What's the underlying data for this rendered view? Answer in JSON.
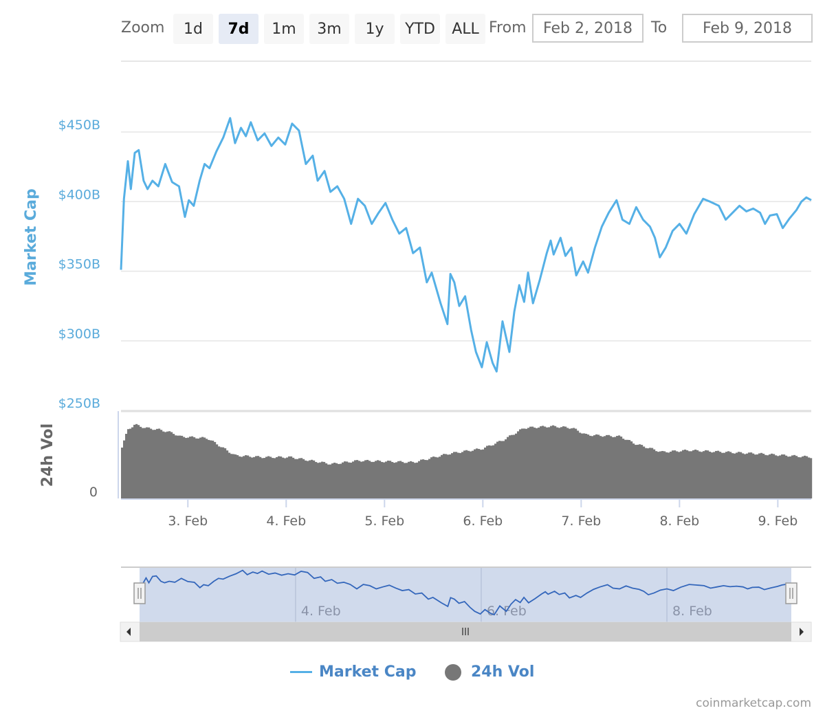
{
  "toolbar": {
    "zoom_label": "Zoom",
    "ranges": [
      "1d",
      "7d",
      "1m",
      "3m",
      "1y",
      "YTD",
      "ALL"
    ],
    "active_range": "7d",
    "from_label": "From",
    "from_value": "Feb 2, 2018",
    "to_label": "To",
    "to_value": "Feb 9, 2018"
  },
  "colors": {
    "market_cap": "#55b0e6",
    "volume": "#777777",
    "navigator_line": "#3366bb",
    "navigator_mask": "#cbd6ea",
    "axis_label": "#5aabdb"
  },
  "chart_data": {
    "type": "line",
    "title": "",
    "x_unit": "day of February 2018",
    "xlim": [
      2.32,
      9.34
    ],
    "x_ticks": [
      3,
      4,
      5,
      6,
      7,
      8,
      9
    ],
    "x_tick_labels": [
      "3. Feb",
      "4. Feb",
      "5. Feb",
      "6. Feb",
      "7. Feb",
      "8. Feb",
      "9. Feb"
    ],
    "market_cap": {
      "name": "Market Cap",
      "ylabel": "Market Cap",
      "ylim": [
        250,
        450
      ],
      "y_ticks": [
        250,
        300,
        350,
        400,
        450
      ],
      "y_tick_labels": [
        "$250B",
        "$300B",
        "$350B",
        "$400B",
        "$450B"
      ],
      "points": [
        [
          2.32,
          351
        ],
        [
          2.35,
          402
        ],
        [
          2.39,
          429
        ],
        [
          2.42,
          409
        ],
        [
          2.46,
          435
        ],
        [
          2.5,
          437
        ],
        [
          2.55,
          415
        ],
        [
          2.59,
          409
        ],
        [
          2.64,
          415
        ],
        [
          2.7,
          411
        ],
        [
          2.77,
          427
        ],
        [
          2.84,
          414
        ],
        [
          2.91,
          411
        ],
        [
          2.97,
          389
        ],
        [
          3.01,
          401
        ],
        [
          3.06,
          397
        ],
        [
          3.12,
          415
        ],
        [
          3.17,
          427
        ],
        [
          3.22,
          424
        ],
        [
          3.29,
          436
        ],
        [
          3.36,
          446
        ],
        [
          3.43,
          460
        ],
        [
          3.48,
          442
        ],
        [
          3.54,
          453
        ],
        [
          3.59,
          447
        ],
        [
          3.64,
          457
        ],
        [
          3.71,
          444
        ],
        [
          3.78,
          449
        ],
        [
          3.85,
          440
        ],
        [
          3.92,
          446
        ],
        [
          3.99,
          441
        ],
        [
          4.06,
          456
        ],
        [
          4.13,
          451
        ],
        [
          4.2,
          427
        ],
        [
          4.27,
          433
        ],
        [
          4.32,
          415
        ],
        [
          4.39,
          422
        ],
        [
          4.45,
          407
        ],
        [
          4.52,
          411
        ],
        [
          4.59,
          402
        ],
        [
          4.66,
          384
        ],
        [
          4.73,
          402
        ],
        [
          4.8,
          397
        ],
        [
          4.87,
          384
        ],
        [
          4.94,
          392
        ],
        [
          5.01,
          399
        ],
        [
          5.08,
          387
        ],
        [
          5.15,
          377
        ],
        [
          5.22,
          381
        ],
        [
          5.29,
          363
        ],
        [
          5.36,
          367
        ],
        [
          5.43,
          342
        ],
        [
          5.48,
          349
        ],
        [
          5.57,
          327
        ],
        [
          5.64,
          312
        ],
        [
          5.67,
          348
        ],
        [
          5.71,
          342
        ],
        [
          5.76,
          325
        ],
        [
          5.82,
          332
        ],
        [
          5.88,
          308
        ],
        [
          5.93,
          292
        ],
        [
          5.99,
          281
        ],
        [
          6.04,
          299
        ],
        [
          6.1,
          284
        ],
        [
          6.14,
          278
        ],
        [
          6.2,
          314
        ],
        [
          6.27,
          292
        ],
        [
          6.32,
          321
        ],
        [
          6.37,
          340
        ],
        [
          6.42,
          328
        ],
        [
          6.46,
          349
        ],
        [
          6.51,
          327
        ],
        [
          6.58,
          344
        ],
        [
          6.65,
          363
        ],
        [
          6.69,
          372
        ],
        [
          6.72,
          362
        ],
        [
          6.79,
          374
        ],
        [
          6.84,
          361
        ],
        [
          6.9,
          367
        ],
        [
          6.95,
          347
        ],
        [
          7.02,
          357
        ],
        [
          7.07,
          349
        ],
        [
          7.14,
          367
        ],
        [
          7.21,
          382
        ],
        [
          7.28,
          392
        ],
        [
          7.36,
          401
        ],
        [
          7.42,
          387
        ],
        [
          7.49,
          384
        ],
        [
          7.56,
          396
        ],
        [
          7.63,
          387
        ],
        [
          7.7,
          382
        ],
        [
          7.75,
          374
        ],
        [
          7.8,
          360
        ],
        [
          7.86,
          367
        ],
        [
          7.93,
          379
        ],
        [
          8.0,
          384
        ],
        [
          8.07,
          377
        ],
        [
          8.15,
          391
        ],
        [
          8.24,
          402
        ],
        [
          8.31,
          400
        ],
        [
          8.4,
          397
        ],
        [
          8.47,
          387
        ],
        [
          8.54,
          392
        ],
        [
          8.61,
          397
        ],
        [
          8.68,
          393
        ],
        [
          8.75,
          395
        ],
        [
          8.82,
          392
        ],
        [
          8.87,
          384
        ],
        [
          8.92,
          390
        ],
        [
          8.99,
          391
        ],
        [
          9.05,
          381
        ],
        [
          9.12,
          388
        ],
        [
          9.19,
          394
        ],
        [
          9.24,
          400
        ],
        [
          9.29,
          403
        ],
        [
          9.34,
          401
        ]
      ]
    },
    "volume": {
      "name": "24h Vol",
      "ylabel": "24h Vol",
      "y_tick_labels": [
        "0"
      ],
      "value_unit": "percent of volume axis",
      "points": [
        [
          2.32,
          60
        ],
        [
          2.38,
          80
        ],
        [
          2.45,
          86
        ],
        [
          2.56,
          82
        ],
        [
          2.7,
          80
        ],
        [
          2.84,
          76
        ],
        [
          2.91,
          72
        ],
        [
          3.19,
          70
        ],
        [
          3.33,
          60
        ],
        [
          3.47,
          50
        ],
        [
          3.75,
          48
        ],
        [
          4.03,
          48
        ],
        [
          4.45,
          40
        ],
        [
          4.73,
          44
        ],
        [
          5.29,
          42
        ],
        [
          5.64,
          52
        ],
        [
          5.99,
          58
        ],
        [
          6.2,
          68
        ],
        [
          6.41,
          82
        ],
        [
          6.69,
          84
        ],
        [
          6.9,
          82
        ],
        [
          7.04,
          74
        ],
        [
          7.39,
          72
        ],
        [
          7.53,
          64
        ],
        [
          7.81,
          54
        ],
        [
          8.09,
          56
        ],
        [
          8.44,
          54
        ],
        [
          8.79,
          52
        ],
        [
          9.34,
          48
        ]
      ]
    },
    "navigator": {
      "x_tick_labels": [
        "4. Feb",
        "6. Feb",
        "8. Feb"
      ],
      "x_ticks": [
        4,
        6,
        8
      ]
    },
    "legend": [
      "Market Cap",
      "24h Vol"
    ],
    "legend_position": "bottom-center"
  },
  "credit": "coinmarketcap.com"
}
